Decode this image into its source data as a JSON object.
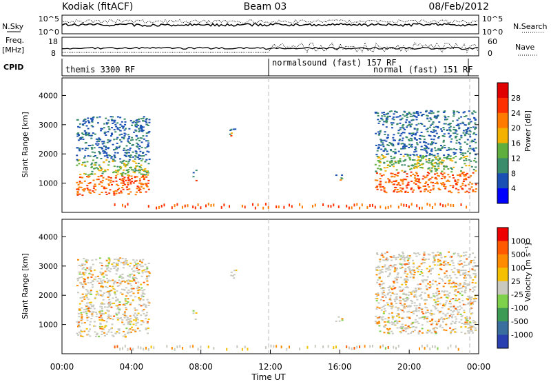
{
  "header": {
    "station": "Kodiak (fitACF)",
    "beam": "Beam 03",
    "date": "08/Feb/2012"
  },
  "strip_panels": {
    "nsky_label": "N.Sky",
    "nsky_ticks": [
      "10^5",
      "10^0"
    ],
    "nsearch_label": "N.Search",
    "nsearch_ticks": [
      "10^5",
      "10^0"
    ],
    "freq_label": "Freq.",
    "freq_unit": "[MHz]",
    "freq_ticks": [
      "18",
      "8"
    ],
    "nave_label": "Nave",
    "nave_ticks": [
      "60",
      "0"
    ],
    "cpid_label": "CPID",
    "cpid_segments": [
      {
        "label": "themis 3300 RF",
        "start_hour": 0.0,
        "end_hour": 12.0
      },
      {
        "label": "normalsound (fast) 157 RF",
        "start_hour": 12.0,
        "end_hour": 23.5
      },
      {
        "label": "normal (fast) 151 RF",
        "start_hour": 19.6,
        "end_hour": 23.5
      }
    ]
  },
  "chart_data": [
    {
      "type": "heatmap",
      "panel": "power",
      "ylabel": "Slant Range [km]",
      "yticks": [
        1000,
        2000,
        3000,
        4000
      ],
      "ylim": [
        0,
        4600
      ],
      "xlim": [
        0,
        24
      ],
      "colorbar_label": "Power [dB]",
      "colorbar_ticks": [
        "28",
        "24",
        "20",
        "16",
        "12",
        "8",
        "4"
      ],
      "colorbar_colors": [
        "#0000ff",
        "#1a4fb4",
        "#3a8c6a",
        "#5fae3e",
        "#f3b100",
        "#ff7b00",
        "#ff3000",
        "#e00000"
      ],
      "echo_regions": [
        {
          "t0": 0.8,
          "t1": 5.0,
          "r0": 600,
          "r1": 3300
        },
        {
          "t0": 7.5,
          "t1": 7.7,
          "r0": 1100,
          "r1": 1500
        },
        {
          "t0": 9.6,
          "t1": 10.0,
          "r0": 2600,
          "r1": 2900
        },
        {
          "t0": 15.7,
          "t1": 16.2,
          "r0": 1100,
          "r1": 1300
        },
        {
          "t0": 18.0,
          "t1": 23.8,
          "r0": 700,
          "r1": 3500
        }
      ]
    },
    {
      "type": "heatmap",
      "panel": "velocity",
      "ylabel": "Slant Range [km]",
      "yticks": [
        1000,
        2000,
        3000,
        4000
      ],
      "ylim": [
        0,
        4600
      ],
      "xlim": [
        0,
        24
      ],
      "xlabel": "Time UT",
      "xticks": [
        "00:00",
        "04:00",
        "08:00",
        "12:00",
        "16:00",
        "20:00",
        "00:00"
      ],
      "colorbar_label": "Velocity [m s⁻¹]",
      "colorbar_ticks": [
        "1000",
        "500",
        "100",
        "25",
        "-25",
        "-100",
        "-500",
        "-1000"
      ],
      "colorbar_colors": [
        "#2a3fb0",
        "#3a6e9e",
        "#3d9a55",
        "#7fd04a",
        "#c9c9c0",
        "#f5c000",
        "#ff8c00",
        "#ff5a00",
        "#ee0000"
      ],
      "echo_regions": [
        {
          "t0": 0.8,
          "t1": 5.0,
          "r0": 600,
          "r1": 3300
        },
        {
          "t0": 7.5,
          "t1": 7.7,
          "r0": 1100,
          "r1": 1500
        },
        {
          "t0": 9.6,
          "t1": 10.0,
          "r0": 2600,
          "r1": 2900
        },
        {
          "t0": 15.7,
          "t1": 16.2,
          "r0": 1100,
          "r1": 1300
        },
        {
          "t0": 18.0,
          "t1": 23.8,
          "r0": 700,
          "r1": 3500
        }
      ]
    }
  ]
}
